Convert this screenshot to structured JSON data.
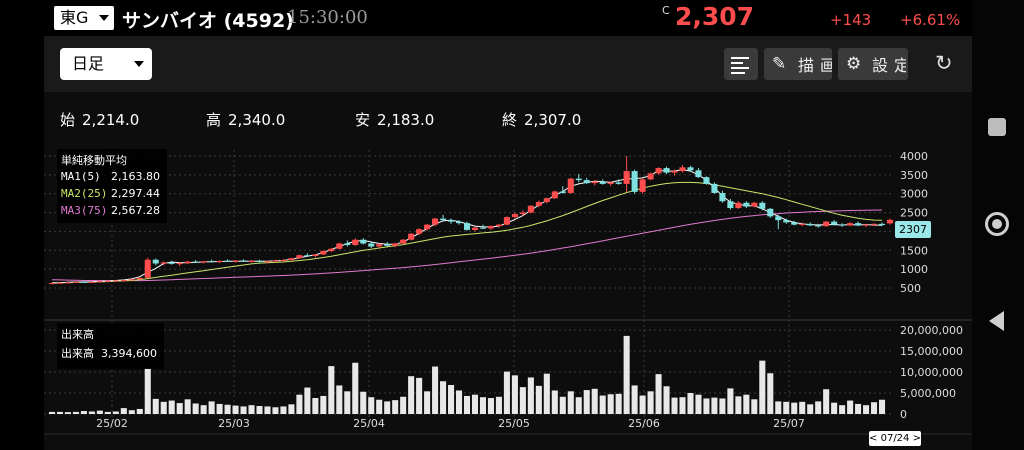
{
  "header": {
    "market": "東G",
    "stock_name": "サンバイオ (4592)",
    "time": "15:30:00",
    "price_mark": "C",
    "price": "2,307",
    "change": "+143",
    "change_pct": "+6.61%"
  },
  "toolbar": {
    "period": "日足",
    "draw_label": "描画",
    "setting_label": "設定",
    "icons": [
      "list-icon",
      "pencil-icon",
      "gear-icon",
      "refresh-icon"
    ]
  },
  "ohlc": {
    "open_label": "始",
    "open": "2,214.0",
    "high_label": "高",
    "high": "2,340.0",
    "low_label": "安",
    "low": "2,183.0",
    "close_label": "終",
    "close": "2,307.0"
  },
  "ma_legend": {
    "title": "単純移動平均",
    "rows": [
      {
        "label": "MA1(5)",
        "value": "2,163.80",
        "color": "#ffffff"
      },
      {
        "label": "MA2(25)",
        "value": "2,297.44",
        "color": "#c8e66a"
      },
      {
        "label": "MA3(75)",
        "value": "2,567.28",
        "color": "#e07ad0"
      }
    ]
  },
  "volume_legend": {
    "title": "出来高",
    "label": "出来高",
    "value": "3,394,600"
  },
  "current_price_label": "2307",
  "date_cursor": "< 07/24 >",
  "chart_data": {
    "type": "candlestick",
    "colors": {
      "up": "#ff4d4d",
      "down": "#7fe0e0",
      "ma5": "#ffffff",
      "ma25": "#c8e66a",
      "ma75": "#e07ad0",
      "volume": "#e8e8e8"
    },
    "price_axis": {
      "ticks": [
        "4000",
        "3500",
        "3000",
        "2500",
        "2000",
        "1500",
        "1000",
        "500"
      ],
      "min": 500,
      "max": 4000
    },
    "volume_axis": {
      "ticks": [
        "20,000,000",
        "15,000,000",
        "10,000,000",
        "5,000,000",
        "0"
      ],
      "min": 0,
      "max": 20000000
    },
    "x_ticks": [
      "25/02",
      "25/03",
      "25/04",
      "25/05",
      "25/06",
      "25/07"
    ],
    "candles": [
      [
        620,
        640,
        600,
        630
      ],
      [
        630,
        650,
        610,
        640
      ],
      [
        640,
        660,
        620,
        650
      ],
      [
        650,
        670,
        630,
        660
      ],
      [
        660,
        680,
        640,
        650
      ],
      [
        650,
        670,
        630,
        660
      ],
      [
        660,
        690,
        640,
        680
      ],
      [
        680,
        700,
        660,
        690
      ],
      [
        690,
        710,
        670,
        700
      ],
      [
        700,
        720,
        680,
        710
      ],
      [
        710,
        740,
        700,
        730
      ],
      [
        730,
        780,
        720,
        770
      ],
      [
        770,
        1300,
        760,
        1250
      ],
      [
        1250,
        1280,
        1100,
        1150
      ],
      [
        1150,
        1200,
        1100,
        1180
      ],
      [
        1180,
        1220,
        1120,
        1140
      ],
      [
        1140,
        1180,
        1080,
        1160
      ],
      [
        1160,
        1220,
        1140,
        1200
      ],
      [
        1200,
        1240,
        1160,
        1180
      ],
      [
        1180,
        1220,
        1150,
        1210
      ],
      [
        1210,
        1250,
        1180,
        1190
      ],
      [
        1190,
        1230,
        1160,
        1220
      ],
      [
        1220,
        1260,
        1190,
        1200
      ],
      [
        1200,
        1240,
        1170,
        1230
      ],
      [
        1230,
        1260,
        1190,
        1200
      ],
      [
        1200,
        1240,
        1170,
        1220
      ],
      [
        1220,
        1250,
        1180,
        1190
      ],
      [
        1190,
        1230,
        1160,
        1210
      ],
      [
        1210,
        1250,
        1180,
        1230
      ],
      [
        1230,
        1270,
        1190,
        1240
      ],
      [
        1240,
        1300,
        1220,
        1290
      ],
      [
        1290,
        1380,
        1270,
        1370
      ],
      [
        1370,
        1420,
        1330,
        1350
      ],
      [
        1350,
        1400,
        1310,
        1390
      ],
      [
        1390,
        1500,
        1370,
        1480
      ],
      [
        1480,
        1560,
        1450,
        1540
      ],
      [
        1540,
        1700,
        1520,
        1680
      ],
      [
        1680,
        1760,
        1600,
        1640
      ],
      [
        1640,
        1820,
        1620,
        1780
      ],
      [
        1780,
        1820,
        1650,
        1680
      ],
      [
        1680,
        1720,
        1560,
        1600
      ],
      [
        1600,
        1680,
        1560,
        1660
      ],
      [
        1660,
        1720,
        1600,
        1620
      ],
      [
        1620,
        1700,
        1580,
        1680
      ],
      [
        1680,
        1800,
        1660,
        1780
      ],
      [
        1780,
        1960,
        1760,
        1940
      ],
      [
        1940,
        2080,
        1900,
        2060
      ],
      [
        2060,
        2200,
        2020,
        2180
      ],
      [
        2180,
        2360,
        2140,
        2340
      ],
      [
        2340,
        2440,
        2280,
        2300
      ],
      [
        2300,
        2340,
        2200,
        2260
      ],
      [
        2260,
        2300,
        2180,
        2220
      ],
      [
        2220,
        2260,
        2020,
        2040
      ],
      [
        2040,
        2120,
        2000,
        2100
      ],
      [
        2100,
        2180,
        2060,
        2080
      ],
      [
        2080,
        2160,
        2040,
        2140
      ],
      [
        2140,
        2200,
        2100,
        2180
      ],
      [
        2180,
        2400,
        2160,
        2380
      ],
      [
        2380,
        2500,
        2340,
        2460
      ],
      [
        2460,
        2560,
        2420,
        2500
      ],
      [
        2500,
        2700,
        2480,
        2680
      ],
      [
        2680,
        2820,
        2640,
        2780
      ],
      [
        2780,
        2900,
        2740,
        2880
      ],
      [
        2880,
        3080,
        2860,
        3060
      ],
      [
        3060,
        3200,
        3000,
        3020
      ],
      [
        3020,
        3420,
        3000,
        3400
      ],
      [
        3400,
        3520,
        3300,
        3360
      ],
      [
        3360,
        3420,
        3260,
        3280
      ],
      [
        3280,
        3360,
        3220,
        3320
      ],
      [
        3320,
        3380,
        3240,
        3260
      ],
      [
        3260,
        3320,
        3200,
        3300
      ],
      [
        3300,
        3380,
        3240,
        3260
      ],
      [
        3260,
        4000,
        3040,
        3600
      ],
      [
        3600,
        3640,
        3000,
        3050
      ],
      [
        3050,
        3400,
        3000,
        3380
      ],
      [
        3380,
        3560,
        3360,
        3540
      ],
      [
        3540,
        3700,
        3500,
        3680
      ],
      [
        3680,
        3720,
        3520,
        3560
      ],
      [
        3560,
        3640,
        3480,
        3600
      ],
      [
        3600,
        3760,
        3560,
        3700
      ],
      [
        3700,
        3740,
        3580,
        3620
      ],
      [
        3620,
        3680,
        3420,
        3440
      ],
      [
        3440,
        3460,
        3240,
        3260
      ],
      [
        3260,
        3300,
        3000,
        3020
      ],
      [
        3020,
        3080,
        2760,
        2800
      ],
      [
        2800,
        2860,
        2580,
        2620
      ],
      [
        2620,
        2800,
        2600,
        2760
      ],
      [
        2760,
        2800,
        2620,
        2660
      ],
      [
        2660,
        2780,
        2640,
        2760
      ],
      [
        2760,
        2800,
        2560,
        2600
      ],
      [
        2600,
        2620,
        2360,
        2400
      ],
      [
        2400,
        2440,
        2060,
        2300
      ],
      [
        2300,
        2340,
        2200,
        2240
      ],
      [
        2240,
        2280,
        2160,
        2180
      ],
      [
        2180,
        2240,
        2140,
        2200
      ],
      [
        2200,
        2240,
        2140,
        2160
      ],
      [
        2160,
        2200,
        2100,
        2140
      ],
      [
        2140,
        2280,
        2120,
        2260
      ],
      [
        2260,
        2300,
        2160,
        2180
      ],
      [
        2180,
        2220,
        2120,
        2160
      ],
      [
        2160,
        2240,
        2140,
        2220
      ],
      [
        2220,
        2260,
        2140,
        2160
      ],
      [
        2160,
        2200,
        2120,
        2180
      ],
      [
        2180,
        2220,
        2140,
        2200
      ],
      [
        2200,
        2240,
        2140,
        2170
      ],
      [
        2214,
        2340,
        2183,
        2307
      ]
    ],
    "volumes": [
      500,
      500,
      450,
      500,
      700,
      600,
      800,
      500,
      600,
      1400,
      900,
      1200,
      10800,
      3600,
      2900,
      3200,
      2600,
      3500,
      2500,
      2100,
      3000,
      2400,
      2200,
      2000,
      1800,
      2100,
      1900,
      1800,
      1600,
      1800,
      2300,
      4600,
      6300,
      3800,
      4300,
      11400,
      6800,
      5400,
      12200,
      5300,
      4000,
      3400,
      3000,
      3300,
      4100,
      9000,
      8600,
      5400,
      11300,
      7800,
      6900,
      5600,
      4300,
      4600,
      4000,
      3800,
      4100,
      10100,
      9200,
      6400,
      8700,
      6700,
      9600,
      5600,
      4100,
      5400,
      4000,
      5700,
      6000,
      4400,
      4700,
      4800,
      18600,
      6800,
      4400,
      5400,
      9500,
      6600,
      3900,
      4000,
      5000,
      4600,
      3700,
      3900,
      3700,
      6100,
      4200,
      4600,
      3500,
      12700,
      9700,
      3000,
      2900,
      2700,
      2900,
      2300,
      3000,
      5900,
      2700,
      2100,
      3200,
      2400,
      2100,
      2800,
      3394
    ],
    "ma_lines": {
      "ma5_values": [
        630,
        640,
        650,
        660,
        660,
        665,
        675,
        685,
        700,
        715,
        740,
        800,
        920,
        1020,
        1150,
        1190,
        1170,
        1170,
        1180,
        1190,
        1200,
        1200,
        1210,
        1210,
        1210,
        1210,
        1210,
        1210,
        1220,
        1230,
        1260,
        1300,
        1340,
        1380,
        1440,
        1520,
        1600,
        1680,
        1740,
        1760,
        1720,
        1680,
        1660,
        1660,
        1720,
        1830,
        1950,
        2080,
        2200,
        2280,
        2300,
        2260,
        2200,
        2140,
        2120,
        2120,
        2140,
        2220,
        2320,
        2420,
        2560,
        2700,
        2820,
        2960,
        3060,
        3200,
        3260,
        3300,
        3330,
        3320,
        3300,
        3350,
        3390,
        3400,
        3420,
        3480,
        3620,
        3600,
        3600,
        3640,
        3600,
        3500,
        3360,
        3160,
        2940,
        2780,
        2720,
        2680,
        2680,
        2600,
        2500,
        2400,
        2300,
        2240,
        2200,
        2180,
        2170,
        2180,
        2180,
        2170,
        2180,
        2170,
        2180,
        2170,
        2164
      ],
      "ma25_values": [
        640,
        640,
        645,
        650,
        655,
        660,
        665,
        670,
        680,
        690,
        700,
        720,
        750,
        780,
        810,
        840,
        870,
        900,
        930,
        960,
        990,
        1020,
        1050,
        1080,
        1110,
        1140,
        1160,
        1170,
        1180,
        1190,
        1210,
        1230,
        1250,
        1280,
        1310,
        1340,
        1380,
        1420,
        1460,
        1500,
        1530,
        1560,
        1590,
        1620,
        1650,
        1690,
        1730,
        1770,
        1810,
        1850,
        1880,
        1900,
        1920,
        1940,
        1960,
        1980,
        2000,
        2030,
        2070,
        2110,
        2160,
        2220,
        2280,
        2350,
        2420,
        2500,
        2580,
        2660,
        2740,
        2820,
        2890,
        2960,
        3030,
        3090,
        3150,
        3200,
        3240,
        3270,
        3290,
        3300,
        3300,
        3290,
        3270,
        3240,
        3200,
        3160,
        3120,
        3080,
        3040,
        3000,
        2950,
        2900,
        2840,
        2780,
        2720,
        2660,
        2600,
        2540,
        2480,
        2430,
        2390,
        2350,
        2320,
        2300,
        2297
      ],
      "ma75_values": [
        720,
        715,
        710,
        705,
        700,
        698,
        696,
        695,
        694,
        694,
        695,
        697,
        700,
        705,
        712,
        720,
        728,
        736,
        744,
        752,
        760,
        768,
        776,
        784,
        792,
        800,
        808,
        816,
        824,
        832,
        842,
        852,
        862,
        874,
        886,
        900,
        914,
        930,
        946,
        962,
        978,
        994,
        1010,
        1026,
        1042,
        1060,
        1080,
        1100,
        1122,
        1146,
        1170,
        1194,
        1218,
        1242,
        1266,
        1290,
        1314,
        1340,
        1368,
        1396,
        1426,
        1458,
        1490,
        1524,
        1560,
        1596,
        1634,
        1672,
        1710,
        1750,
        1790,
        1830,
        1870,
        1910,
        1950,
        1990,
        2030,
        2070,
        2110,
        2150,
        2188,
        2224,
        2258,
        2290,
        2320,
        2348,
        2374,
        2398,
        2420,
        2440,
        2458,
        2474,
        2488,
        2500,
        2510,
        2520,
        2528,
        2536,
        2542,
        2548,
        2554,
        2558,
        2562,
        2565,
        2567
      ]
    }
  }
}
